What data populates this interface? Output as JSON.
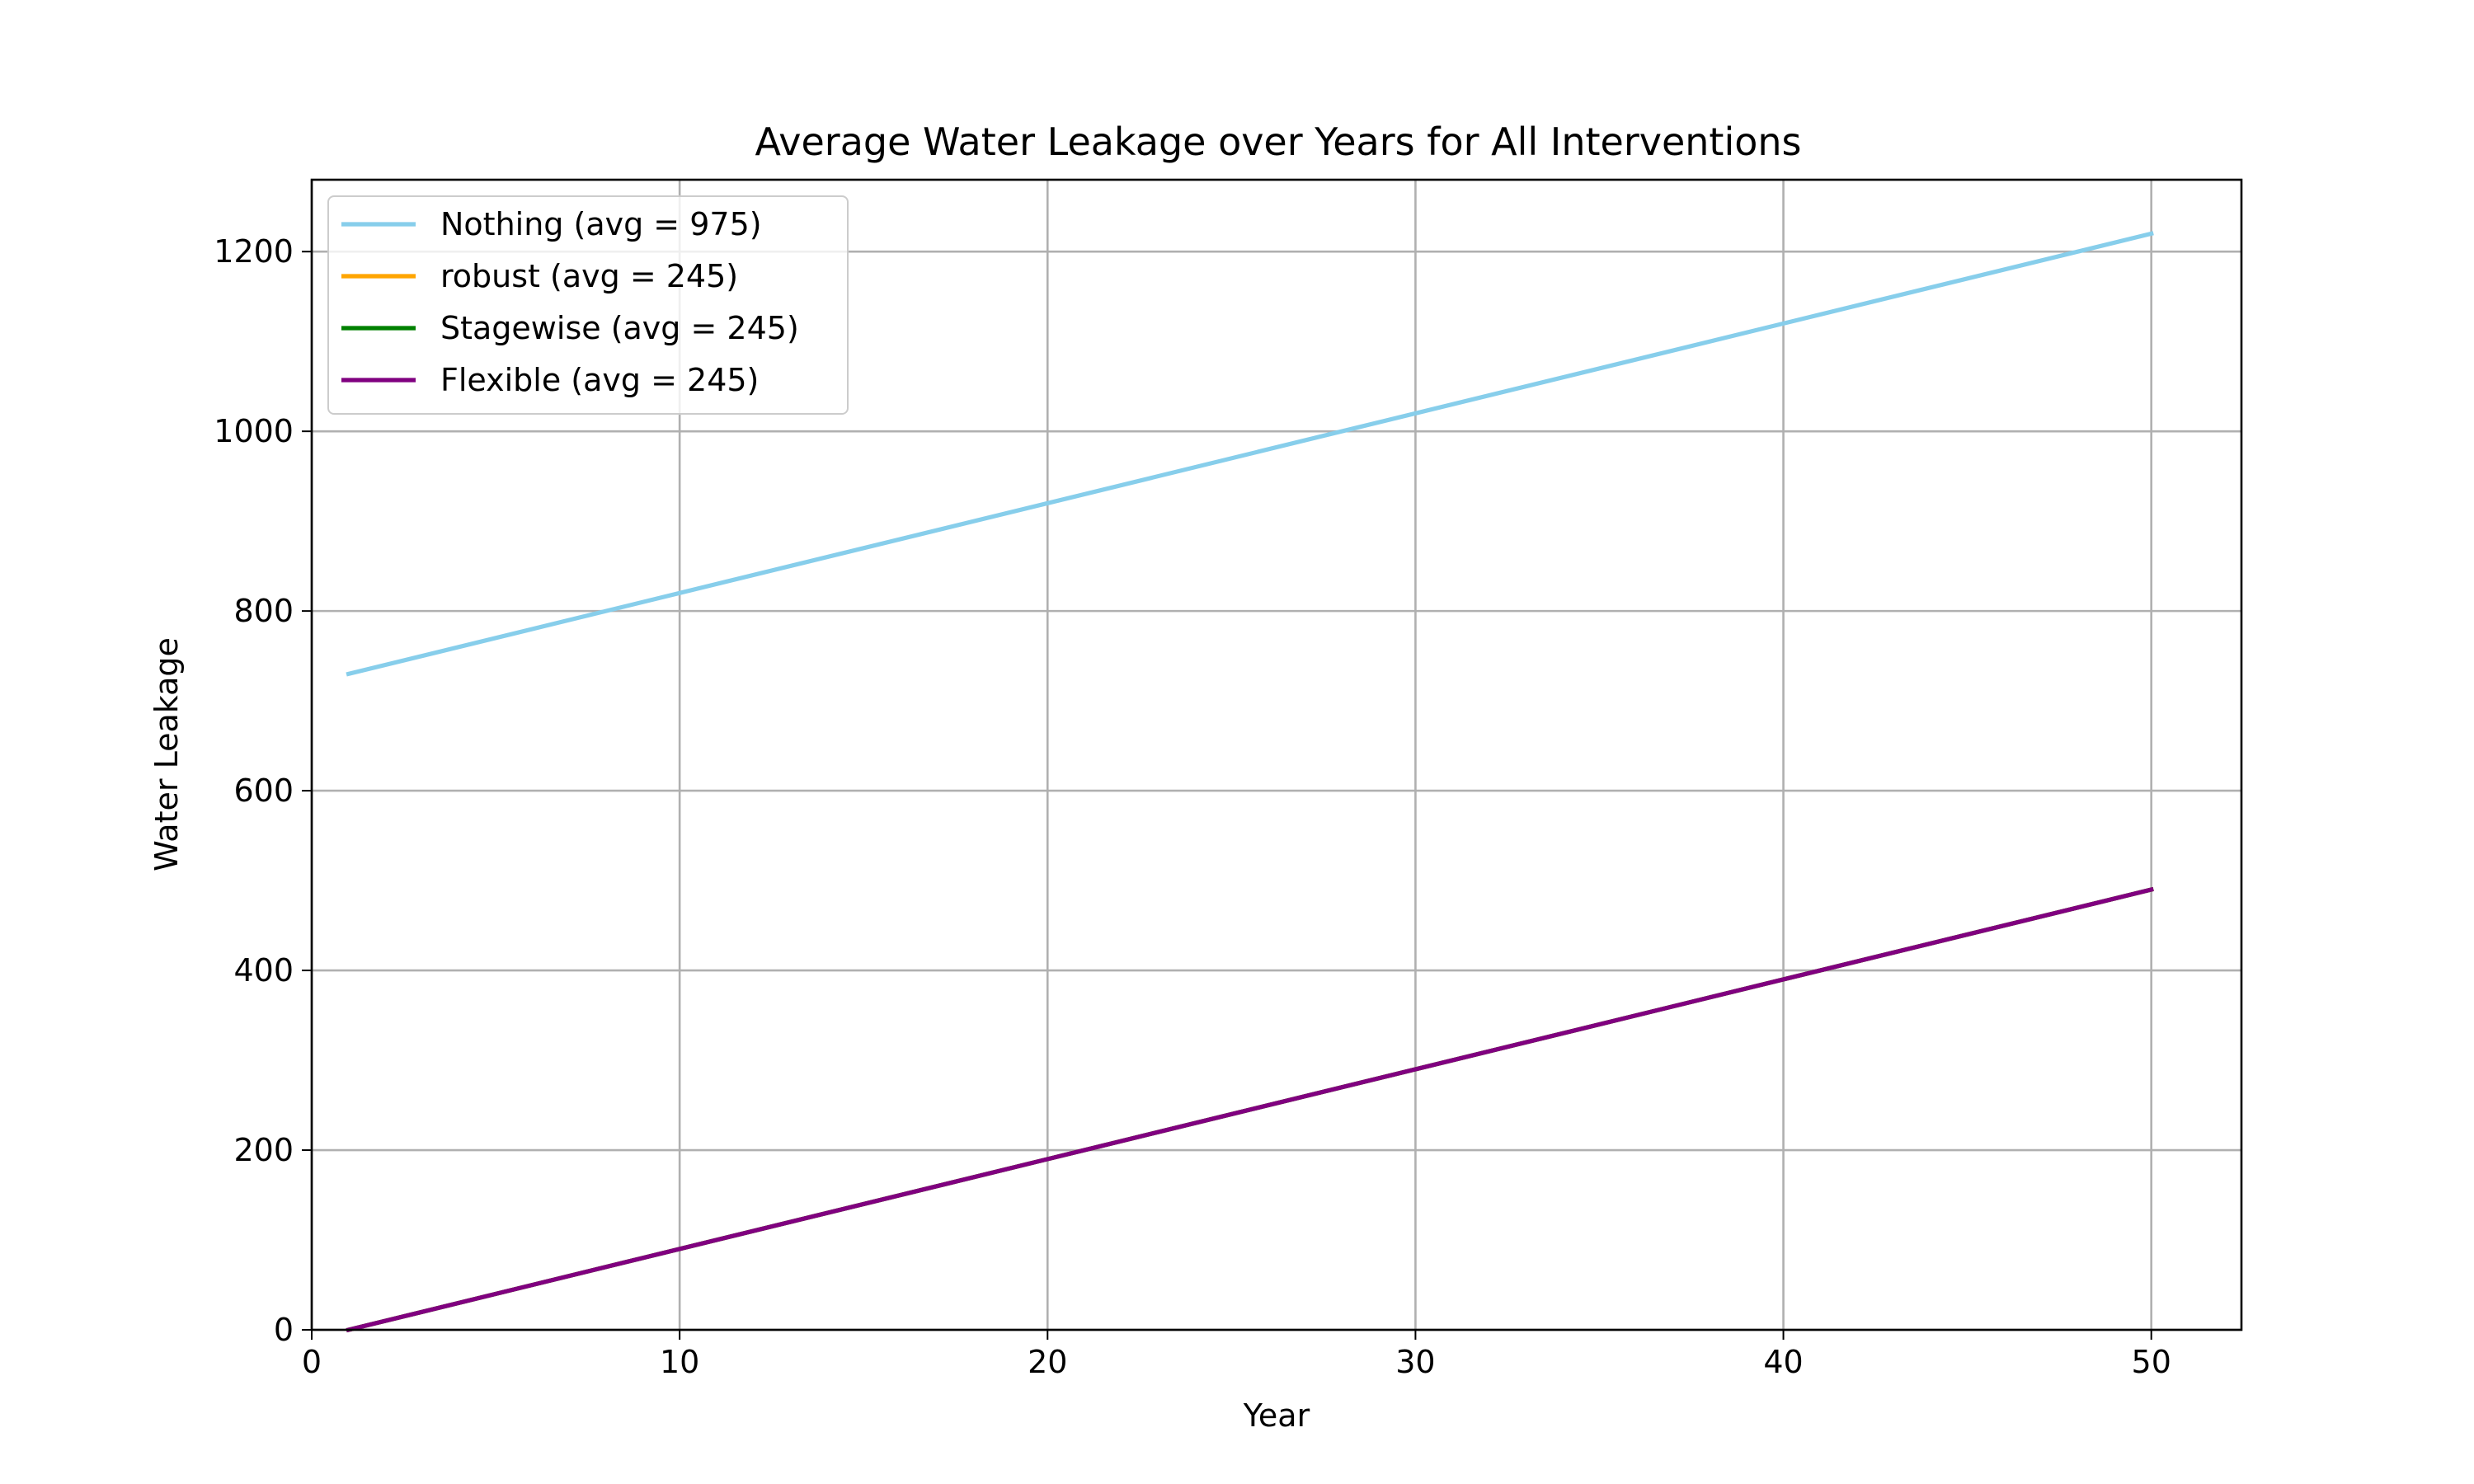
{
  "chart_data": {
    "type": "line",
    "title": "Average Water Leakage over Years for All Interventions",
    "xlabel": "Year",
    "ylabel": "Water Leakage",
    "xlim": [
      0,
      52.45
    ],
    "ylim": [
      0,
      1280
    ],
    "xticks": [
      0,
      10,
      20,
      30,
      40,
      50
    ],
    "yticks": [
      0,
      200,
      400,
      600,
      800,
      1000,
      1200
    ],
    "grid": true,
    "legend_position": "upper left",
    "series": [
      {
        "name": "Nothing (avg = 975)",
        "color": "#87ceeb",
        "x": [
          1,
          50
        ],
        "y": [
          730,
          1220
        ]
      },
      {
        "name": "robust (avg = 245)",
        "color": "#ffa500",
        "x": [
          1,
          50
        ],
        "y": [
          0,
          490
        ]
      },
      {
        "name": "Stagewise (avg = 245)",
        "color": "#008000",
        "x": [
          1,
          50
        ],
        "y": [
          0,
          490
        ]
      },
      {
        "name": "Flexible (avg = 245)",
        "color": "#800080",
        "x": [
          1,
          50
        ],
        "y": [
          0,
          490
        ]
      }
    ]
  }
}
